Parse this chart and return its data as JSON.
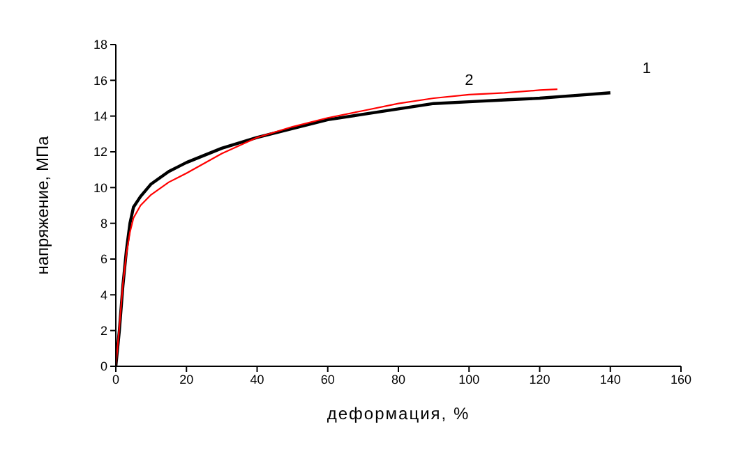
{
  "chart_data": {
    "type": "line",
    "xlabel": "деформация, %",
    "ylabel": "напряжение, МПа",
    "xlim": [
      0,
      160
    ],
    "xticks": [
      0,
      20,
      40,
      60,
      80,
      100,
      120,
      140,
      160
    ],
    "ylim": [
      0,
      18
    ],
    "yticks": [
      0,
      2,
      4,
      6,
      8,
      10,
      12,
      14,
      16,
      18
    ],
    "grid": false,
    "legend": false,
    "marker": "none",
    "line_style": "solid",
    "series": [
      {
        "name": "1",
        "color": "#000000",
        "x": [
          0,
          1,
          2,
          3,
          4,
          5,
          7,
          10,
          15,
          20,
          30,
          40,
          50,
          60,
          70,
          80,
          90,
          100,
          110,
          120,
          130,
          140
        ],
        "values": [
          0,
          2,
          4.5,
          6.5,
          8,
          8.9,
          9.5,
          10.2,
          10.9,
          11.4,
          12.2,
          12.8,
          13.3,
          13.8,
          14.1,
          14.4,
          14.7,
          14.8,
          14.9,
          15,
          15.15,
          15.3
        ]
      },
      {
        "name": "2",
        "color": "#ff0000",
        "x": [
          0,
          1,
          2,
          3,
          4,
          5,
          7,
          10,
          15,
          20,
          30,
          40,
          50,
          60,
          70,
          80,
          90,
          100,
          110,
          120,
          125
        ],
        "values": [
          0,
          2.2,
          4.6,
          6.3,
          7.5,
          8.3,
          9,
          9.6,
          10.3,
          10.8,
          11.9,
          12.8,
          13.4,
          13.9,
          14.3,
          14.7,
          15,
          15.2,
          15.3,
          15.45,
          15.5
        ]
      }
    ]
  }
}
